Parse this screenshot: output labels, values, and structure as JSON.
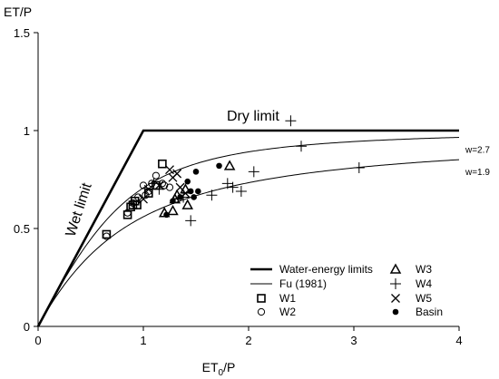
{
  "chart_data": {
    "type": "scatter",
    "xlabel_main": "ET",
    "xlabel_sub": "0",
    "xlabel_rest": "/P",
    "ylabel": "ET/P",
    "xlim": [
      0,
      4
    ],
    "ylim": [
      0,
      1.5
    ],
    "xticks": [
      0,
      1,
      2,
      3,
      4
    ],
    "yticks": [
      0,
      0.5,
      1,
      1.5
    ],
    "ytick_labels": [
      "0",
      "0.5",
      "1",
      "1.5"
    ],
    "limits": {
      "name": "Water-energy limits",
      "x": [
        0,
        1,
        4
      ],
      "y": [
        0,
        1,
        1
      ],
      "wet_label": "Wet limit",
      "dry_label": "Dry limit"
    },
    "fu_curves": {
      "name": "Fu (1981)",
      "curves": [
        {
          "w": 2.7,
          "label": "w=2.7"
        },
        {
          "w": 1.9,
          "label": "w=1.9"
        }
      ],
      "x_range": [
        0,
        4
      ]
    },
    "series": [
      {
        "name": "W1",
        "marker": "square",
        "points": [
          [
            0.65,
            0.47
          ],
          [
            0.85,
            0.57
          ],
          [
            0.88,
            0.61
          ],
          [
            0.9,
            0.62
          ],
          [
            0.92,
            0.64
          ],
          [
            0.94,
            0.62
          ],
          [
            1.05,
            0.68
          ],
          [
            1.12,
            0.72
          ],
          [
            1.18,
            0.83
          ]
        ]
      },
      {
        "name": "W2",
        "marker": "circle",
        "points": [
          [
            0.65,
            0.46
          ],
          [
            0.85,
            0.58
          ],
          [
            0.9,
            0.63
          ],
          [
            0.95,
            0.66
          ],
          [
            1.0,
            0.72
          ],
          [
            1.02,
            0.67
          ],
          [
            1.05,
            0.69
          ],
          [
            1.08,
            0.73
          ],
          [
            1.12,
            0.77
          ],
          [
            1.18,
            0.73
          ],
          [
            1.2,
            0.72
          ],
          [
            1.25,
            0.71
          ]
        ]
      },
      {
        "name": "W3",
        "marker": "triangle",
        "points": [
          [
            1.2,
            0.58
          ],
          [
            1.28,
            0.59
          ],
          [
            1.3,
            0.65
          ],
          [
            1.32,
            0.67
          ],
          [
            1.4,
            0.7
          ],
          [
            1.42,
            0.62
          ],
          [
            1.82,
            0.82
          ]
        ]
      },
      {
        "name": "W4",
        "marker": "plus",
        "points": [
          [
            1.1,
            0.73
          ],
          [
            1.15,
            0.7
          ],
          [
            1.38,
            0.66
          ],
          [
            1.45,
            0.54
          ],
          [
            1.65,
            0.67
          ],
          [
            1.8,
            0.73
          ],
          [
            1.85,
            0.71
          ],
          [
            1.93,
            0.69
          ],
          [
            2.05,
            0.79
          ],
          [
            2.4,
            1.05
          ],
          [
            2.5,
            0.92
          ],
          [
            3.05,
            0.81
          ]
        ]
      },
      {
        "name": "W5",
        "marker": "cross",
        "points": [
          [
            1.0,
            0.65
          ],
          [
            1.05,
            0.7
          ],
          [
            1.15,
            0.72
          ],
          [
            1.25,
            0.8
          ],
          [
            1.28,
            0.76
          ],
          [
            1.32,
            0.78
          ],
          [
            1.35,
            0.71
          ],
          [
            1.4,
            0.68
          ]
        ]
      },
      {
        "name": "Basin",
        "marker": "dot",
        "points": [
          [
            1.22,
            0.57
          ],
          [
            1.28,
            0.64
          ],
          [
            1.35,
            0.66
          ],
          [
            1.42,
            0.74
          ],
          [
            1.45,
            0.69
          ],
          [
            1.48,
            0.66
          ],
          [
            1.5,
            0.79
          ],
          [
            1.52,
            0.69
          ],
          [
            1.72,
            0.82
          ]
        ]
      }
    ]
  }
}
